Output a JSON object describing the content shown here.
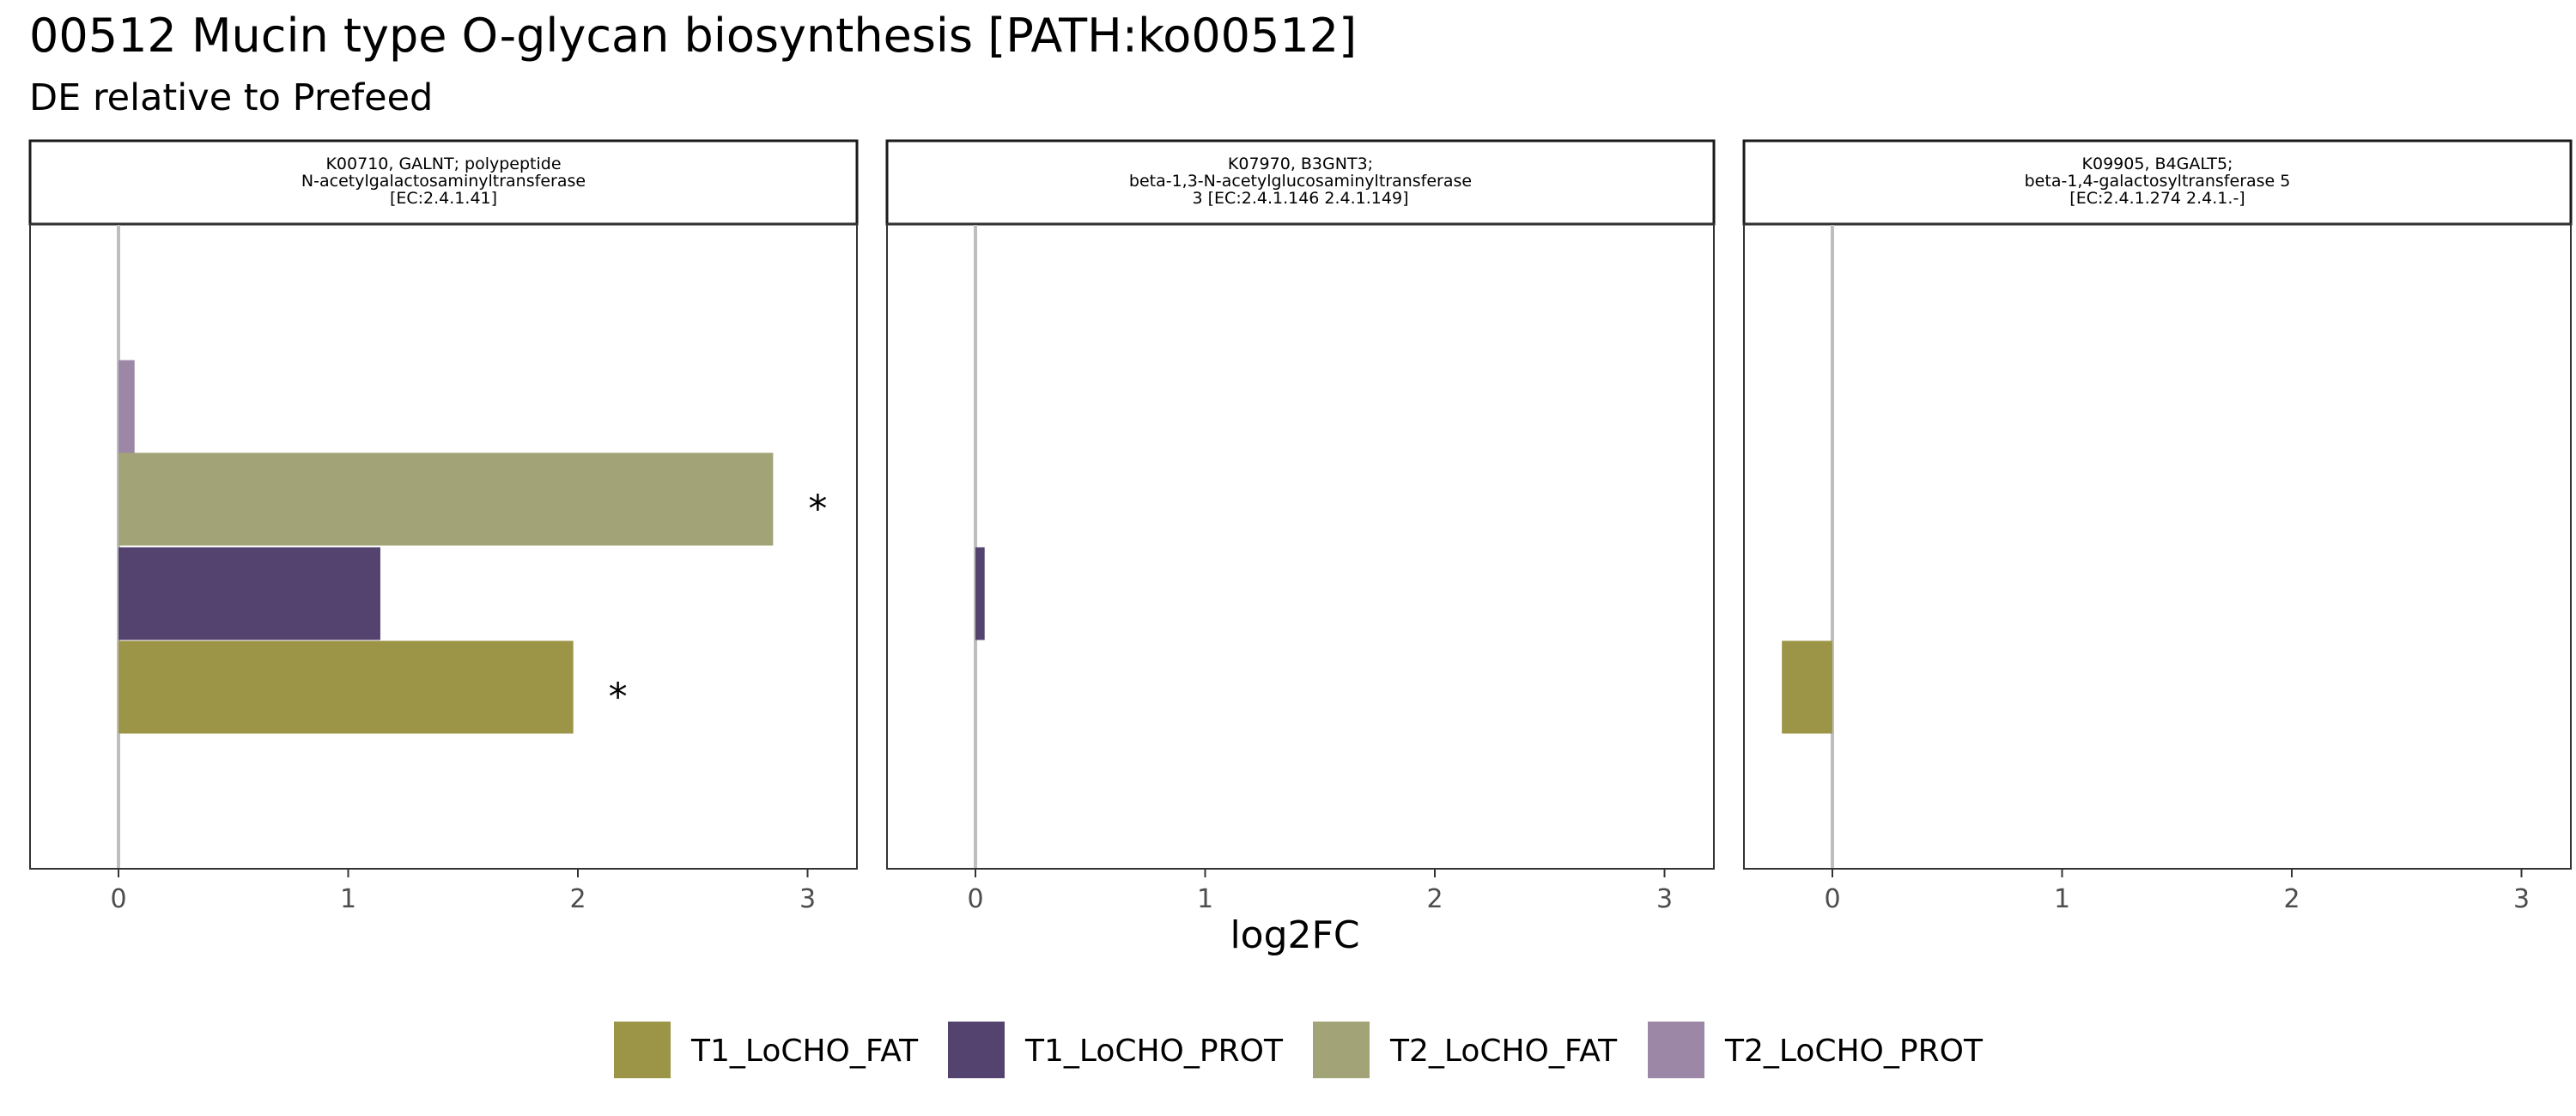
{
  "chart_data": {
    "type": "bar",
    "orientation": "horizontal",
    "title": "00512 Mucin type O-glycan biosynthesis [PATH:ko00512]",
    "subtitle": "DE relative to Prefeed",
    "xlabel": "log2FC",
    "xlim": [
      -0.4,
      3.2
    ],
    "xticks": [
      "0",
      "1",
      "2",
      "3"
    ],
    "grid": false,
    "legend_position": "bottom",
    "series": [
      {
        "name": "T1_LoCHO_FAT",
        "color": "#9c9447"
      },
      {
        "name": "T1_LoCHO_PROT",
        "color": "#54426f"
      },
      {
        "name": "T2_LoCHO_FAT",
        "color": "#a2a376"
      },
      {
        "name": "T2_LoCHO_PROT",
        "color": "#9c88a6"
      }
    ],
    "panels": [
      {
        "label_lines": [
          "K00710, GALNT; polypeptide",
          "N-acetylgalactosaminyltransferase",
          "[EC:2.4.1.41]"
        ],
        "values": [
          1.98,
          1.14,
          2.85,
          0.07
        ],
        "significant": [
          true,
          false,
          true,
          false
        ]
      },
      {
        "label_lines": [
          "K07970, B3GNT3;",
          "beta-1,3-N-acetylglucosaminyltransferase",
          "3 [EC:2.4.1.146 2.4.1.149]"
        ],
        "values": [
          null,
          0.04,
          null,
          null
        ],
        "significant": [
          false,
          false,
          false,
          false
        ]
      },
      {
        "label_lines": [
          "K09905, B4GALT5;",
          "beta-1,4-galactosyltransferase 5",
          "[EC:2.4.1.274 2.4.1.-]"
        ],
        "values": [
          -0.22,
          null,
          null,
          null
        ],
        "significant": [
          false,
          false,
          false,
          false
        ]
      }
    ],
    "significance_marker": "*"
  }
}
